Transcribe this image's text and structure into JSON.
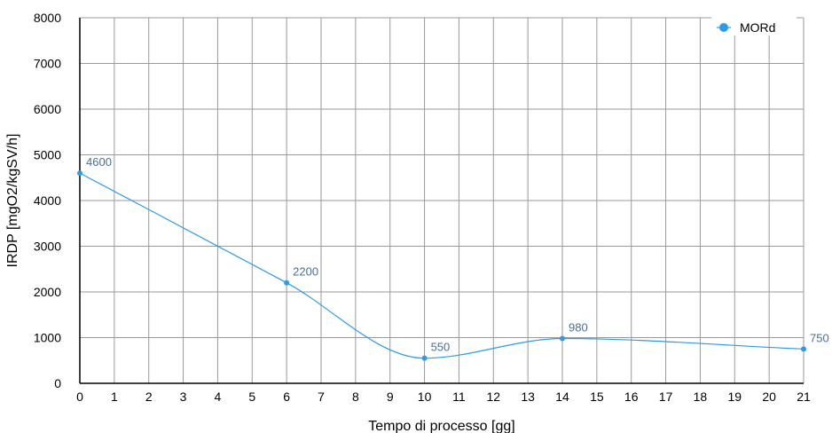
{
  "chart_data": {
    "type": "line",
    "xlabel": "Tempo di processo [gg]",
    "ylabel": "IRDP [mgO2/kgSV/h]",
    "xlim": [
      0,
      21
    ],
    "ylim": [
      0,
      8000
    ],
    "x_ticks": [
      "0",
      "1",
      "2",
      "3",
      "4",
      "5",
      "6",
      "7",
      "8",
      "9",
      "10",
      "11",
      "12",
      "13",
      "14",
      "15",
      "16",
      "17",
      "18",
      "19",
      "20",
      "21"
    ],
    "y_ticks": [
      "0",
      "1000",
      "2000",
      "3000",
      "4000",
      "5000",
      "6000",
      "7000",
      "8000"
    ],
    "grid": true,
    "legend_position": "top-right",
    "series": [
      {
        "name": "MORd",
        "color": "#2e9be6",
        "smooth": true,
        "x": [
          0,
          6,
          10,
          14,
          21
        ],
        "y": [
          4600,
          2200,
          550,
          980,
          750
        ],
        "labels": [
          "4600",
          "2200",
          "550",
          "980",
          "750"
        ]
      }
    ]
  }
}
